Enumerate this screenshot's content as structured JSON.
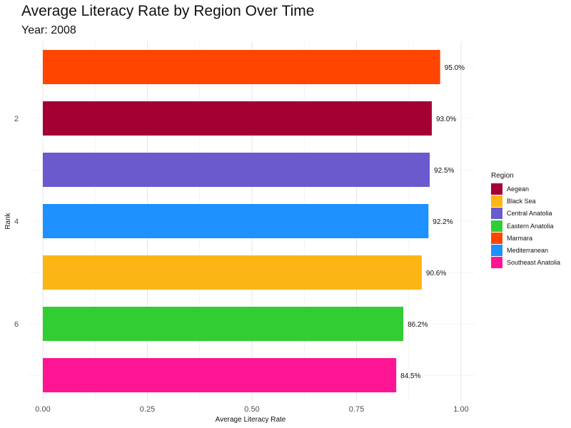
{
  "chart_data": {
    "type": "bar",
    "orientation": "horizontal",
    "title": "Average Literacy Rate by Region Over Time",
    "subtitle": "Year: 2008",
    "xlabel": "Average Literacy Rate",
    "ylabel": "Rank",
    "xlim": [
      0,
      1
    ],
    "x_ticks": [
      "0.00",
      "0.25",
      "0.50",
      "0.75",
      "1.00"
    ],
    "y_ticks": [
      {
        "rank": 2,
        "label": "2"
      },
      {
        "rank": 4,
        "label": "4"
      },
      {
        "rank": 6,
        "label": "6"
      }
    ],
    "grid": true,
    "legend_title": "Region",
    "legend_position": "right",
    "legend": [
      {
        "name": "Aegean",
        "color": "#A50034"
      },
      {
        "name": "Black Sea",
        "color": "#FBB515"
      },
      {
        "name": "Central Anatolia",
        "color": "#6A5ACD"
      },
      {
        "name": "Eastern Anatolia",
        "color": "#32CD32"
      },
      {
        "name": "Marmara",
        "color": "#FF4500"
      },
      {
        "name": "Mediterranean",
        "color": "#1E90FF"
      },
      {
        "name": "Southeast Anatolia",
        "color": "#FF1493"
      }
    ],
    "bars": [
      {
        "rank": 1,
        "region": "Marmara",
        "value": 0.95,
        "label": "95.0%",
        "color": "#FF4500"
      },
      {
        "rank": 2,
        "region": "Aegean",
        "value": 0.93,
        "label": "93.0%",
        "color": "#A50034"
      },
      {
        "rank": 3,
        "region": "Central Anatolia",
        "value": 0.925,
        "label": "92.5%",
        "color": "#6A5ACD"
      },
      {
        "rank": 4,
        "region": "Mediterranean",
        "value": 0.922,
        "label": "92.2%",
        "color": "#1E90FF"
      },
      {
        "rank": 5,
        "region": "Black Sea",
        "value": 0.906,
        "label": "90.6%",
        "color": "#FBB515"
      },
      {
        "rank": 6,
        "region": "Eastern Anatolia",
        "value": 0.862,
        "label": "86.2%",
        "color": "#32CD32"
      },
      {
        "rank": 7,
        "region": "Southeast Anatolia",
        "value": 0.845,
        "label": "84.5%",
        "color": "#FF1493"
      }
    ]
  }
}
